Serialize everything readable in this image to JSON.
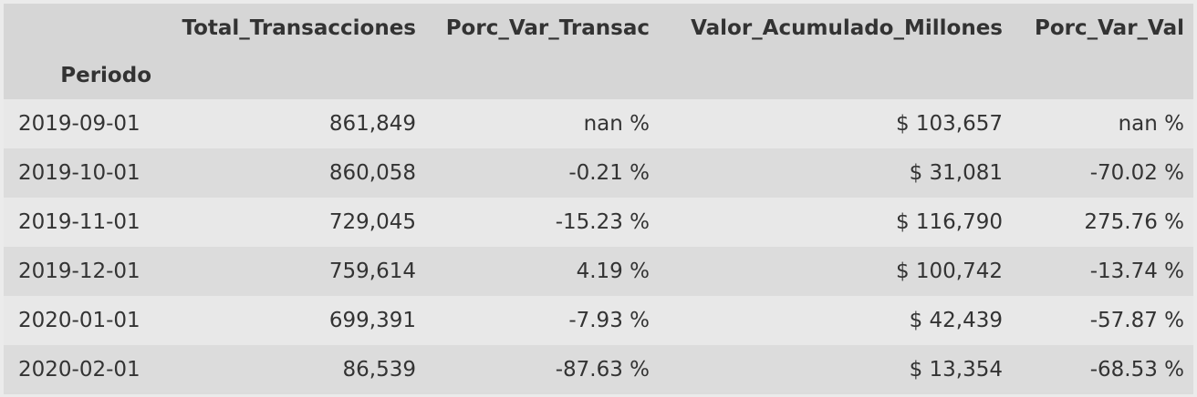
{
  "table": {
    "columns": [
      "Total_Transacciones",
      "Porc_Var_Transac",
      "Valor_Acumulado_Millones",
      "Porc_Var_Val"
    ],
    "index_name": "Periodo",
    "rows": [
      {
        "periodo": "2019-09-01",
        "total": "861,849",
        "porc_transac": "nan %",
        "valor": "$ 103,657",
        "porc_val": "nan %"
      },
      {
        "periodo": "2019-10-01",
        "total": "860,058",
        "porc_transac": "-0.21 %",
        "valor": "$ 31,081",
        "porc_val": "-70.02 %"
      },
      {
        "periodo": "2019-11-01",
        "total": "729,045",
        "porc_transac": "-15.23 %",
        "valor": "$ 116,790",
        "porc_val": "275.76 %"
      },
      {
        "periodo": "2019-12-01",
        "total": "759,614",
        "porc_transac": "4.19 %",
        "valor": "$ 100,742",
        "porc_val": "-13.74 %"
      },
      {
        "periodo": "2020-01-01",
        "total": "699,391",
        "porc_transac": "-7.93 %",
        "valor": "$ 42,439",
        "porc_val": "-57.87 %"
      },
      {
        "periodo": "2020-02-01",
        "total": "86,539",
        "porc_transac": "-87.63 %",
        "valor": "$ 13,354",
        "porc_val": "-68.53 %"
      }
    ]
  }
}
